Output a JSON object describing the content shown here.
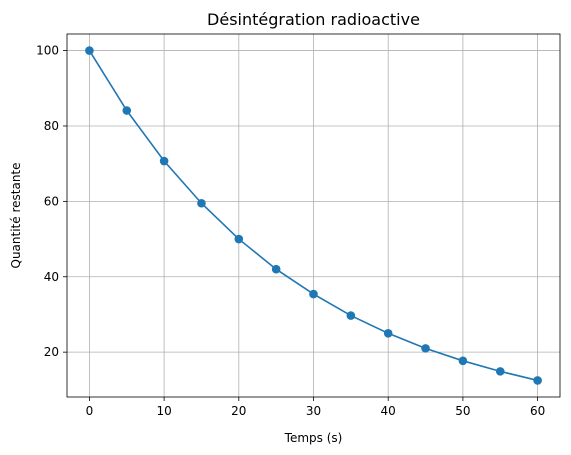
{
  "chart_data": {
    "type": "line",
    "title": "Désintégration radioactive",
    "xlabel": "Temps (s)",
    "ylabel": "Quantité restante",
    "xlim": [
      -3,
      63
    ],
    "ylim": [
      8.1,
      104.4
    ],
    "xticks": [
      0,
      10,
      20,
      30,
      40,
      50,
      60
    ],
    "yticks": [
      20,
      40,
      60,
      80,
      100
    ],
    "grid": true,
    "marker": "circle",
    "color": "#1f77b4",
    "series": [
      {
        "x": [
          0,
          5,
          10,
          15,
          20,
          25,
          30,
          35,
          40,
          45,
          50,
          55,
          60
        ],
        "values": [
          100,
          84.1,
          70.7,
          59.5,
          50.0,
          42.0,
          35.4,
          29.7,
          25.0,
          21.0,
          17.7,
          14.9,
          12.5
        ]
      }
    ]
  }
}
